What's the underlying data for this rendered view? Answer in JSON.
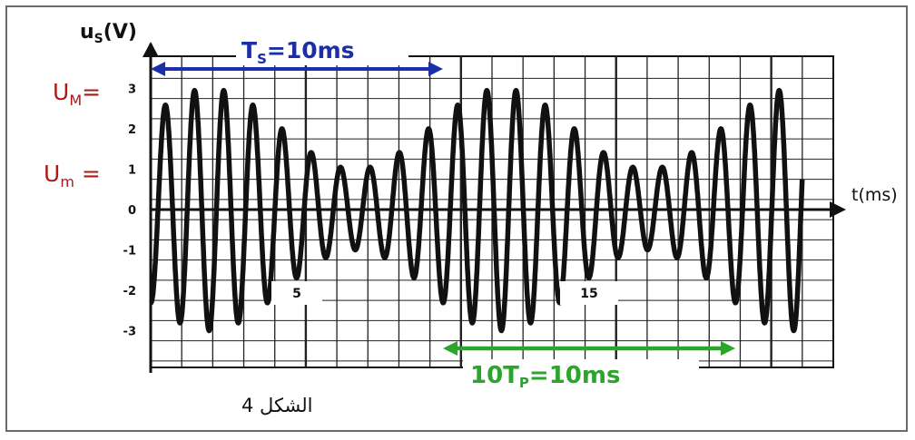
{
  "chart_data": {
    "type": "line",
    "ylabel": "u",
    "ylabel_sub": "S",
    "ylabel_unit": "(V)",
    "xlabel": "t(ms)",
    "y_ticks": [
      "3",
      "2",
      "1",
      "0",
      "-1",
      "-2",
      "-3"
    ],
    "y_tick_values": [
      3,
      2,
      1,
      0,
      -1,
      -2,
      -3
    ],
    "x_tick_labels": [
      {
        "t": 5,
        "label": "5"
      },
      {
        "t": 15,
        "label": "15"
      }
    ],
    "xlim": [
      0,
      22.5
    ],
    "ylim": [
      -3,
      3
    ],
    "grid": true,
    "annotations": {
      "UM_label": "U",
      "UM_sub": "M",
      "UM_suffix": "=",
      "Um_label": "U",
      "Um_sub": "m",
      "Um_suffix": " =",
      "Ts_label": "T",
      "Ts_sub": "S",
      "Ts_value": "=10ms",
      "Tp_label": "10T",
      "Tp_sub": "P",
      "Tp_value": "=10ms"
    },
    "signal": {
      "amplitude_center": 2,
      "modulation_amplitude": 1,
      "carrier_period_ms": 1,
      "modulation_period_ms": 10,
      "description_values": {
        "U_M": 3,
        "U_m": 1
      }
    },
    "colors": {
      "Ts_arrow": "#1c2fa8",
      "Tp_arrow": "#2ca52c",
      "labels_red": "#b01818",
      "signal": "#111111"
    }
  },
  "caption": "الشكل 4"
}
